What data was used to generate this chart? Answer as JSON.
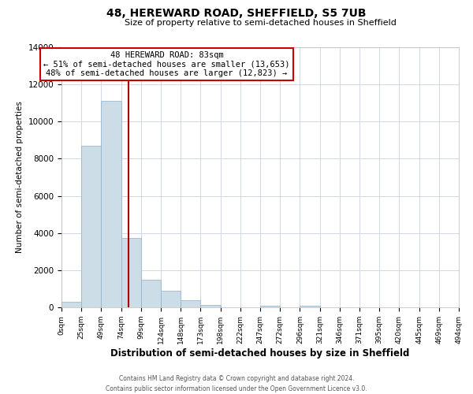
{
  "title": "48, HEREWARD ROAD, SHEFFIELD, S5 7UB",
  "subtitle": "Size of property relative to semi-detached houses in Sheffield",
  "xlabel": "Distribution of semi-detached houses by size in Sheffield",
  "ylabel": "Number of semi-detached properties",
  "bin_labels": [
    "0sqm",
    "25sqm",
    "49sqm",
    "74sqm",
    "99sqm",
    "124sqm",
    "148sqm",
    "173sqm",
    "198sqm",
    "222sqm",
    "247sqm",
    "272sqm",
    "296sqm",
    "321sqm",
    "346sqm",
    "371sqm",
    "395sqm",
    "420sqm",
    "445sqm",
    "469sqm",
    "494sqm"
  ],
  "bar_heights": [
    300,
    8700,
    11100,
    3750,
    1500,
    900,
    400,
    120,
    0,
    0,
    100,
    0,
    100,
    0,
    0,
    0,
    0,
    0,
    0,
    0
  ],
  "bar_color": "#ccdde8",
  "bar_edge_color": "#8ab0cc",
  "property_sqm": 83,
  "bin_edges": [
    0,
    25,
    49,
    74,
    99,
    124,
    148,
    173,
    198,
    222,
    247,
    272,
    296,
    321,
    346,
    371,
    395,
    420,
    445,
    469,
    494
  ],
  "annotation_line1": "48 HEREWARD ROAD: 83sqm",
  "annotation_line2": "← 51% of semi-detached houses are smaller (13,653)",
  "annotation_line3": "48% of semi-detached houses are larger (12,823) →",
  "annotation_box_color": "#ffffff",
  "annotation_box_edge_color": "#cc0000",
  "vline_color": "#aa0000",
  "ylim": [
    0,
    14000
  ],
  "footnote1": "Contains HM Land Registry data © Crown copyright and database right 2024.",
  "footnote2": "Contains public sector information licensed under the Open Government Licence v3.0.",
  "background_color": "#ffffff",
  "grid_color": "#d0d8e8"
}
